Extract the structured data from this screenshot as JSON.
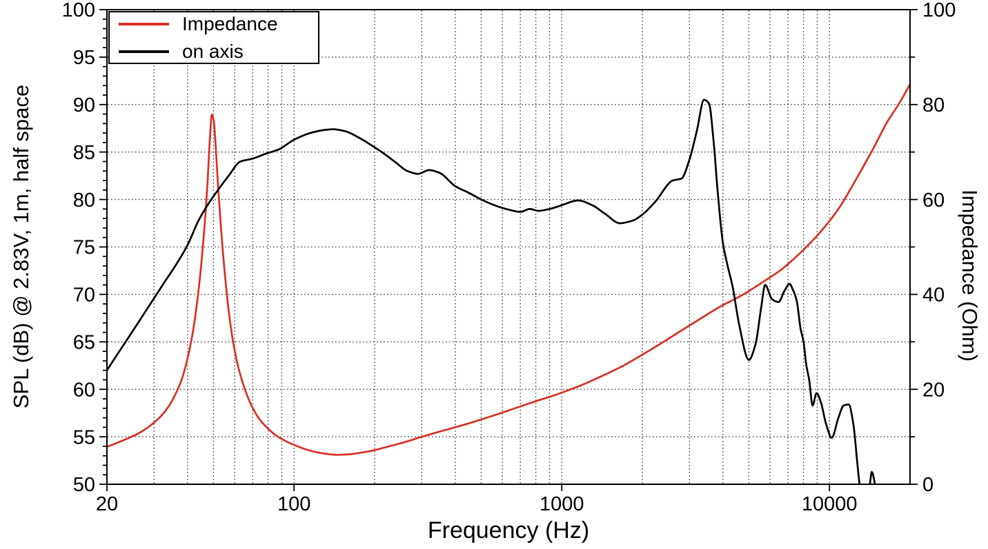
{
  "figure": {
    "background": "#ffffff",
    "axis_color": "#000000",
    "grid_color": "#3a3a3a",
    "grid_style": "dotted"
  },
  "legend": {
    "position": "top-left",
    "items": [
      {
        "label": "Impedance",
        "color": "#d92f22"
      },
      {
        "label": "on axis",
        "color": "#000000"
      }
    ]
  },
  "chart_data": {
    "type": "line",
    "title": "",
    "x_axis": {
      "label": "Frequency (Hz)",
      "scale": "log",
      "range": [
        20,
        20000
      ],
      "major_ticks": [
        20,
        100,
        1000,
        10000
      ]
    },
    "y_left_axis": {
      "label": "SPL (dB) @ 2.83V, 1m, half space",
      "range": [
        50,
        100
      ],
      "major_tick_step": 5,
      "minor_tick_step": 1
    },
    "y_right_axis": {
      "label": "Impedance (Ohm)",
      "range": [
        0,
        100
      ],
      "major_tick_step": 20,
      "minor_tick_step": 10,
      "grid_step": 10
    },
    "series": [
      {
        "name": "Impedance",
        "axis": "right",
        "color": "#d92f22",
        "units": "Ohm",
        "points": [
          [
            20,
            7.9
          ],
          [
            22,
            8.8
          ],
          [
            24,
            9.7
          ],
          [
            26,
            10.6
          ],
          [
            28,
            11.7
          ],
          [
            30,
            13.0
          ],
          [
            32,
            14.5
          ],
          [
            34,
            16.4
          ],
          [
            36,
            18.9
          ],
          [
            38,
            22.0
          ],
          [
            40,
            26.5
          ],
          [
            42,
            32.5
          ],
          [
            44,
            41.0
          ],
          [
            46,
            52.5
          ],
          [
            47.5,
            63.5
          ],
          [
            48.5,
            73.0
          ],
          [
            49.3,
            77.9
          ],
          [
            50.2,
            76.2
          ],
          [
            51,
            71.0
          ],
          [
            52,
            63.0
          ],
          [
            53.5,
            53.0
          ],
          [
            55,
            45.0
          ],
          [
            57,
            36.5
          ],
          [
            59,
            30.5
          ],
          [
            62,
            24.5
          ],
          [
            66,
            19.5
          ],
          [
            70,
            16.1
          ],
          [
            75,
            13.4
          ],
          [
            80,
            11.7
          ],
          [
            86,
            10.2
          ],
          [
            93,
            9.1
          ],
          [
            100,
            8.3
          ],
          [
            110,
            7.4
          ],
          [
            120,
            6.8
          ],
          [
            132,
            6.4
          ],
          [
            145,
            6.2
          ],
          [
            160,
            6.3
          ],
          [
            180,
            6.7
          ],
          [
            200,
            7.2
          ],
          [
            230,
            8.1
          ],
          [
            260,
            8.9
          ],
          [
            300,
            10.0
          ],
          [
            350,
            11.1
          ],
          [
            400,
            12.0
          ],
          [
            460,
            13.0
          ],
          [
            530,
            14.1
          ],
          [
            600,
            15.1
          ],
          [
            700,
            16.4
          ],
          [
            800,
            17.5
          ],
          [
            900,
            18.4
          ],
          [
            1000,
            19.3
          ],
          [
            1200,
            21.0
          ],
          [
            1400,
            22.7
          ],
          [
            1700,
            25.0
          ],
          [
            2000,
            27.3
          ],
          [
            2400,
            30.0
          ],
          [
            2800,
            32.4
          ],
          [
            3300,
            34.9
          ],
          [
            3900,
            37.4
          ],
          [
            4700,
            39.8
          ],
          [
            5600,
            42.5
          ],
          [
            6600,
            45.2
          ],
          [
            7800,
            48.8
          ],
          [
            9200,
            53.0
          ],
          [
            10800,
            58.0
          ],
          [
            12500,
            64.0
          ],
          [
            14500,
            70.5
          ],
          [
            16500,
            76.5
          ],
          [
            18200,
            80.2
          ],
          [
            20000,
            84.3
          ]
        ]
      },
      {
        "name": "on axis",
        "axis": "left",
        "color": "#000000",
        "units": "dB",
        "points": [
          [
            20,
            62.0
          ],
          [
            22,
            63.8
          ],
          [
            24,
            65.4
          ],
          [
            26,
            66.9
          ],
          [
            28,
            68.3
          ],
          [
            30,
            69.6
          ],
          [
            33,
            71.4
          ],
          [
            36,
            73.0
          ],
          [
            40,
            75.2
          ],
          [
            44,
            77.8
          ],
          [
            48,
            79.6
          ],
          [
            52,
            81.0
          ],
          [
            57,
            82.5
          ],
          [
            63,
            84.0
          ],
          [
            70,
            84.3
          ],
          [
            78,
            84.8
          ],
          [
            88,
            85.3
          ],
          [
            100,
            86.3
          ],
          [
            115,
            87.0
          ],
          [
            128,
            87.3
          ],
          [
            140,
            87.4
          ],
          [
            155,
            87.2
          ],
          [
            175,
            86.5
          ],
          [
            195,
            85.7
          ],
          [
            215,
            84.9
          ],
          [
            240,
            83.9
          ],
          [
            265,
            83.0
          ],
          [
            290,
            82.7
          ],
          [
            320,
            83.1
          ],
          [
            350,
            82.8
          ],
          [
            400,
            81.4
          ],
          [
            450,
            80.7
          ],
          [
            500,
            80.0
          ],
          [
            560,
            79.4
          ],
          [
            620,
            79.0
          ],
          [
            700,
            78.7
          ],
          [
            760,
            79.0
          ],
          [
            820,
            78.8
          ],
          [
            900,
            79.0
          ],
          [
            1000,
            79.4
          ],
          [
            1150,
            79.9
          ],
          [
            1300,
            79.4
          ],
          [
            1450,
            78.5
          ],
          [
            1650,
            77.5
          ],
          [
            1850,
            77.8
          ],
          [
            2000,
            78.4
          ],
          [
            2240,
            79.8
          ],
          [
            2600,
            82.0
          ],
          [
            2800,
            82.2
          ],
          [
            3000,
            84.2
          ],
          [
            3200,
            87.3
          ],
          [
            3400,
            90.5
          ],
          [
            3550,
            90.1
          ],
          [
            3700,
            85.8
          ],
          [
            3820,
            81.0
          ],
          [
            4000,
            75.4
          ],
          [
            4150,
            73.2
          ],
          [
            4350,
            70.8
          ],
          [
            4600,
            66.8
          ],
          [
            5000,
            63.1
          ],
          [
            5300,
            64.8
          ],
          [
            5550,
            68.5
          ],
          [
            5750,
            71.0
          ],
          [
            6100,
            69.5
          ],
          [
            6450,
            69.2
          ],
          [
            6800,
            70.4
          ],
          [
            7100,
            71.1
          ],
          [
            7300,
            70.5
          ],
          [
            7550,
            69.3
          ],
          [
            7800,
            66.4
          ],
          [
            8000,
            65.0
          ],
          [
            8200,
            62.5
          ],
          [
            8400,
            61.0
          ],
          [
            8650,
            58.3
          ],
          [
            8950,
            59.6
          ],
          [
            9300,
            58.6
          ],
          [
            9700,
            56.4
          ],
          [
            10200,
            54.9
          ],
          [
            10800,
            57.0
          ],
          [
            11300,
            58.3
          ],
          [
            11800,
            58.4
          ],
          [
            12300,
            56.2
          ],
          [
            12700,
            52.3
          ],
          [
            13000,
            49.6
          ],
          [
            13300,
            47.6
          ],
          [
            13700,
            47.9
          ],
          [
            14100,
            49.6
          ],
          [
            14400,
            51.3
          ],
          [
            14700,
            50.4
          ],
          [
            15000,
            48.4
          ],
          [
            15300,
            46.3
          ]
        ]
      }
    ]
  }
}
